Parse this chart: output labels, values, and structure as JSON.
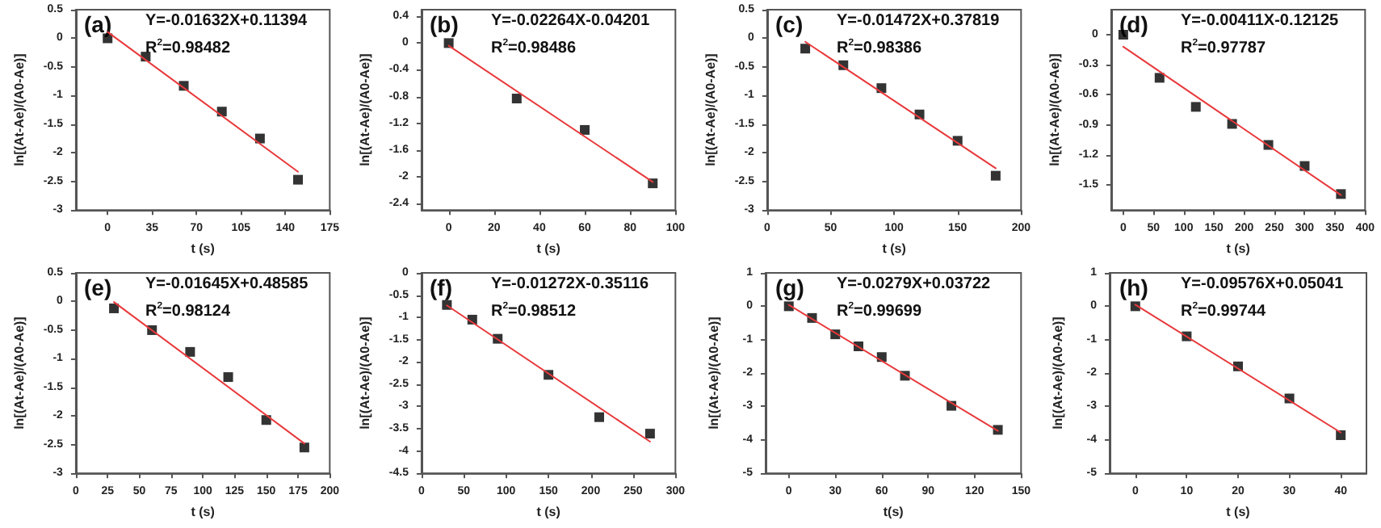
{
  "chart_data": [
    {
      "type": "scatter",
      "title": "(a)",
      "xlabel": "t (s)",
      "ylabel": "ln[(At-Ae)/(A0-Ae)]",
      "annotations": [
        "Y=-0.01632X+0.11394",
        "R$^{2}$=0.98482"
      ],
      "xlim": [
        -25,
        175
      ],
      "xticks": [
        0,
        35,
        70,
        105,
        140,
        175
      ],
      "ylim": [
        -3,
        0.5
      ],
      "yticks": [
        -3,
        -2.5,
        -2,
        -1.5,
        -1,
        -0.5,
        0,
        0.5
      ],
      "series": [
        {
          "x": [
            0,
            30,
            60,
            90,
            120,
            150
          ],
          "values": [
            0,
            -0.32,
            -0.83,
            -1.28,
            -1.75,
            -2.47
          ],
          "color": "#000000",
          "marker": "square"
        },
        {
          "type": "line",
          "x": [
            0,
            150
          ],
          "values": [
            0.11,
            -2.33
          ],
          "color": "#e8393b",
          "marker": "none",
          "line_style": "solid"
        }
      ]
    },
    {
      "type": "scatter",
      "title": "(b)",
      "xlabel": "t (s)",
      "ylabel": "ln[(At-Ae)/(A0-Ae)]",
      "annotations": [
        "Y=-0.02264X-0.04201",
        "R$^{2}$=0.98486"
      ],
      "xlim": [
        -12,
        100
      ],
      "xticks": [
        0,
        20,
        40,
        60,
        80,
        100
      ],
      "ylim": [
        -2.5,
        0.5
      ],
      "yticks": [
        -2.4,
        -2,
        -1.6,
        -1.2,
        -0.8,
        -0.4,
        0,
        0.4
      ],
      "series": [
        {
          "x": [
            0,
            30,
            60,
            90
          ],
          "values": [
            0,
            -0.83,
            -1.3,
            -2.1
          ],
          "color": "#000000",
          "marker": "square"
        },
        {
          "type": "line",
          "x": [
            0,
            90
          ],
          "values": [
            -0.04,
            -2.08
          ],
          "color": "#e8393b",
          "marker": "none",
          "line_style": "solid"
        }
      ]
    },
    {
      "type": "scatter",
      "title": "(c)",
      "xlabel": "t (s)",
      "ylabel": "ln[(At-Ae)/(A0-Ae)]",
      "annotations": [
        "Y=-0.01472X+0.37819",
        "R$^{2}$=0.98386"
      ],
      "xlim": [
        0,
        200
      ],
      "xticks": [
        0,
        50,
        100,
        150,
        200
      ],
      "ylim": [
        -3,
        0.5
      ],
      "yticks": [
        -3,
        -2.5,
        -2,
        -1.5,
        -1,
        -0.5,
        0,
        0.5
      ],
      "series": [
        {
          "x": [
            30,
            60,
            90,
            120,
            150,
            180
          ],
          "values": [
            -0.18,
            -0.47,
            -0.87,
            -1.33,
            -1.79,
            -2.4
          ],
          "color": "#000000",
          "marker": "square"
        },
        {
          "type": "line",
          "x": [
            30,
            180
          ],
          "values": [
            -0.06,
            -2.27
          ],
          "color": "#e8393b",
          "marker": "none",
          "line_style": "solid"
        }
      ]
    },
    {
      "type": "scatter",
      "title": "(d)",
      "xlabel": "t (s)",
      "ylabel": "ln[(At-Ae)/(A0-Ae)]",
      "annotations": [
        "Y=-0.00411X-0.12125",
        "R$^{2}$=0.97787"
      ],
      "xlim": [
        -20,
        400
      ],
      "xticks": [
        0,
        50,
        100,
        150,
        200,
        250,
        300,
        350,
        400
      ],
      "ylim": [
        -1.75,
        0.25
      ],
      "yticks": [
        -1.5,
        -1.2,
        -0.9,
        -0.6,
        -0.3,
        0
      ],
      "series": [
        {
          "x": [
            0,
            60,
            120,
            180,
            240,
            300,
            360
          ],
          "values": [
            0,
            -0.43,
            -0.72,
            -0.89,
            -1.1,
            -1.31,
            -1.59
          ],
          "color": "#000000",
          "marker": "square"
        },
        {
          "type": "line",
          "x": [
            0,
            360
          ],
          "values": [
            -0.12,
            -1.6
          ],
          "color": "#e8393b",
          "marker": "none",
          "line_style": "solid"
        }
      ]
    },
    {
      "type": "scatter",
      "title": "(e)",
      "xlabel": "t (s)",
      "ylabel": "ln[(At-Ae)/(A0-Ae)]",
      "annotations": [
        "Y=-0.01645X+0.48585",
        "R$^{2}$=0.98124"
      ],
      "xlim": [
        0,
        200
      ],
      "xticks": [
        0,
        25,
        50,
        75,
        100,
        125,
        150,
        175,
        200
      ],
      "ylim": [
        -3,
        0.5
      ],
      "yticks": [
        -3,
        -2.5,
        -2,
        -1.5,
        -1,
        -0.5,
        0,
        0.5
      ],
      "series": [
        {
          "x": [
            30,
            60,
            90,
            120,
            150,
            180
          ],
          "values": [
            -0.12,
            -0.5,
            -0.88,
            -1.32,
            -2.07,
            -2.55
          ],
          "color": "#000000",
          "marker": "square"
        },
        {
          "type": "line",
          "x": [
            30,
            180
          ],
          "values": [
            -0.01,
            -2.48
          ],
          "color": "#e8393b",
          "marker": "none",
          "line_style": "solid"
        }
      ]
    },
    {
      "type": "scatter",
      "title": "(f)",
      "xlabel": "t (s)",
      "ylabel": "ln[(At-Ae)/(A0-Ae)]",
      "annotations": [
        "Y=-0.01272X-0.35116",
        "R$^{2}$=0.98512"
      ],
      "xlim": [
        0,
        300
      ],
      "xticks": [
        0,
        50,
        100,
        150,
        200,
        250,
        300
      ],
      "ylim": [
        -4.5,
        0
      ],
      "yticks": [
        -4.5,
        -4,
        -3.5,
        -3,
        -2.5,
        -2,
        -1.5,
        -1,
        -0.5,
        0
      ],
      "series": [
        {
          "x": [
            30,
            60,
            90,
            150,
            210,
            270
          ],
          "values": [
            -0.72,
            -1.05,
            -1.48,
            -2.29,
            -3.24,
            -3.61
          ],
          "color": "#000000",
          "marker": "square"
        },
        {
          "type": "line",
          "x": [
            30,
            270
          ],
          "values": [
            -0.73,
            -3.79
          ],
          "color": "#e8393b",
          "marker": "none",
          "line_style": "solid"
        }
      ]
    },
    {
      "type": "scatter",
      "title": "(g)",
      "xlabel": "t(s)",
      "ylabel": "ln[(At-Ae)/(A0-Ae)]",
      "annotations": [
        "Y=-0.0279X+0.03722",
        "R$^{2}$=0.99699"
      ],
      "xlim": [
        -15,
        150
      ],
      "xticks": [
        0,
        30,
        60,
        90,
        120,
        150
      ],
      "ylim": [
        -5,
        1
      ],
      "yticks": [
        -5,
        -4,
        -3,
        -2,
        -1,
        0,
        1
      ],
      "series": [
        {
          "x": [
            0,
            15,
            30,
            45,
            60,
            75,
            105,
            135
          ],
          "values": [
            0,
            -0.35,
            -0.84,
            -1.2,
            -1.52,
            -2.08,
            -2.98,
            -3.7
          ],
          "color": "#000000",
          "marker": "square"
        },
        {
          "type": "line",
          "x": [
            0,
            135
          ],
          "values": [
            0.04,
            -3.73
          ],
          "color": "#e8393b",
          "marker": "none",
          "line_style": "solid"
        }
      ]
    },
    {
      "type": "scatter",
      "title": "(h)",
      "xlabel": "t (s)",
      "ylabel": "ln[(At-Ae)/(A0-Ae)]",
      "annotations": [
        "Y=-0.09576X+0.05041",
        "R$^{2}$=0.99744"
      ],
      "xlim": [
        -5,
        45
      ],
      "xticks": [
        0,
        10,
        20,
        30,
        40
      ],
      "ylim": [
        -5,
        1
      ],
      "yticks": [
        -5,
        -4,
        -3,
        -2,
        -1,
        0,
        1
      ],
      "series": [
        {
          "x": [
            0,
            10,
            20,
            30,
            40
          ],
          "values": [
            0,
            -0.9,
            -1.8,
            -2.76,
            -3.86
          ],
          "color": "#000000",
          "marker": "square"
        },
        {
          "type": "line",
          "x": [
            0,
            40
          ],
          "values": [
            0.05,
            -3.78
          ],
          "color": "#e8393b",
          "marker": "none",
          "line_style": "solid"
        }
      ]
    }
  ]
}
